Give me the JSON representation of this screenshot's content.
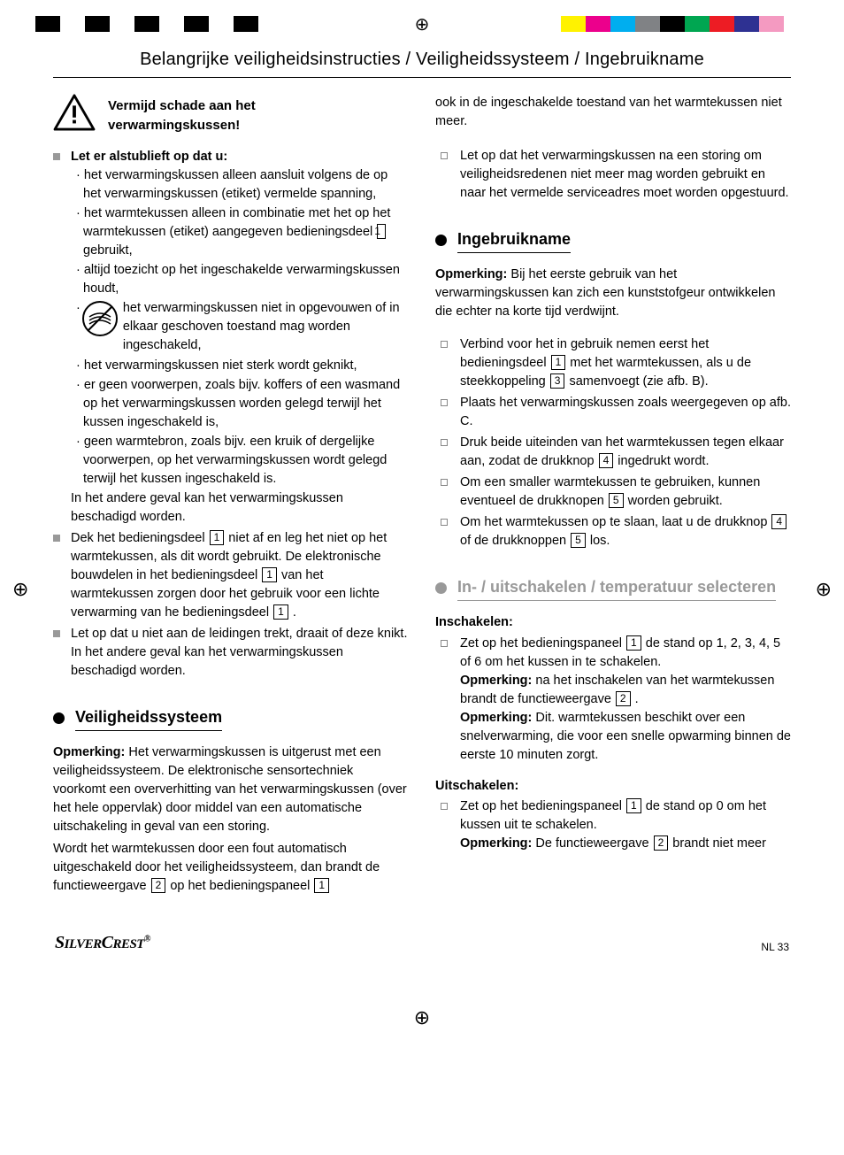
{
  "colorbar": {
    "left": [
      "#000",
      "#fff",
      "#000",
      "#fff",
      "#000",
      "#fff",
      "#000",
      "#fff",
      "#000",
      "#fff"
    ],
    "right": [
      "#fff200",
      "#ec008c",
      "#00aeef",
      "#808285",
      "#000000",
      "#00a651",
      "#ed1c24",
      "#2e3192",
      "#f49ac1",
      "#fff"
    ]
  },
  "header": "Belangrijke veiligheidsinstructies / Veiligheidssysteem / Ingebruikname",
  "warning_title_l1": "Vermijd schade aan het",
  "warning_title_l2": "verwarmingskussen!",
  "letop_head": "Let er alstublieft op dat u:",
  "sub1": "· het verwarmingskussen alleen aansluit volgens de op het verwarmingskussen (etiket) vermelde spanning,",
  "sub2a": "· het warmtekussen alleen in combinatie met het op het warmtekussen (etiket) aangegeven bedieningsdeel ",
  "sub2b": " gebruikt,",
  "sub3": "· altijd toezicht op het ingeschakelde verwarmingskussen houdt,",
  "sub4a": "· ",
  "sub4b": "het verwarmingskussen niet in opgevouwen of in elkaar geschoven toestand mag worden ingeschakeld,",
  "sub5": "· het verwarmingskussen niet sterk wordt geknikt,",
  "sub6": "· er geen voorwerpen, zoals bijv. koffers of een wasmand op het verwarmingskussen worden gelegd terwijl het kussen ingeschakeld is,",
  "sub7": "· geen warmtebron, zoals bijv. een kruik of dergelijke voorwerpen, op het verwarmingskussen wordt gelegd terwijl het kussen ingeschakeld is.",
  "sub_tail": "In het andere geval kan het verwarmingskussen beschadigd worden.",
  "item2a": "Dek het bedieningsdeel ",
  "item2b": " niet af en leg het niet op het warmtekussen, als dit wordt gebruikt. De elektronische bouwdelen in het bedieningsdeel ",
  "item2c": " van het warmtekussen zorgen door het gebruik voor een lichte verwarming van he bedieningsdeel ",
  "item2d": " .",
  "item3": "Let op dat u niet aan de leidingen trekt, draait of deze knikt. In het andere geval kan het verwarmingskussen beschadigd worden.",
  "sec1_title": "Veiligheidssysteem",
  "sec1_p1a": "Opmerking:",
  "sec1_p1b": " Het verwarmingskussen is uitgerust met een veiligheidssysteem. De elektronische sensortechniek voorkomt een oververhitting van het verwarmingskussen (over het hele oppervlak) door middel van een automatische uitschakeling in geval van een storing.",
  "sec1_p2a": "Wordt het warmtekussen door een fout automatisch uitgeschakeld door het veiligheidssysteem, dan brandt de functieweergave ",
  "sec1_p2b": " op het bedieningspaneel ",
  "col2_top": "ook in de ingeschakelde toestand van het warmtekussen niet meer.",
  "col2_b1": "Let op dat het verwarmingskussen na een storing om veiligheidsredenen niet meer mag worden gebruikt en naar het vermelde serviceadres moet worden opgestuurd.",
  "sec2_title": "Ingebruikname",
  "sec2_p1a": "Opmerking:",
  "sec2_p1b": " Bij het eerste gebruik van het verwarmingskussen kan zich een kunststofgeur ontwikkelen die echter na korte tijd verdwijnt.",
  "sec2_li1a": "Verbind voor het in gebruik nemen eerst het bedieningsdeel ",
  "sec2_li1b": " met het warmtekussen, als u de steekkoppeling ",
  "sec2_li1c": " samenvoegt (zie afb. B).",
  "sec2_li2": "Plaats het verwarmingskussen zoals weergegeven op afb. C.",
  "sec2_li3a": "Druk beide uiteinden van het warmtekussen tegen elkaar aan, zodat de drukknop ",
  "sec2_li3b": " ingedrukt wordt.",
  "sec2_li4a": "Om een smaller warmtekussen te gebruiken, kunnen eventueel de drukknopen ",
  "sec2_li4b": " worden gebruikt.",
  "sec2_li5a": "Om het warmtekussen op te slaan, laat u de drukknop ",
  "sec2_li5b": " of de drukknoppen ",
  "sec2_li5c": " los.",
  "sec3_title": "In- / uitschakelen / temperatuur selecteren",
  "insch_head": "Inschakelen:",
  "insch_1a": "Zet op het bedieningspaneel ",
  "insch_1b": " de stand op 1, 2, 3, 4, 5 of 6 om het kussen in te schakelen.",
  "insch_2a": "Opmerking:",
  "insch_2b": " na het inschakelen van het warmtekussen brandt de functieweergave ",
  "insch_2c": " .",
  "insch_3a": "Opmerking:",
  "insch_3b": " Dit. warmtekussen beschikt over een snelverwarming, die voor een snelle opwarming binnen de eerste 10 minuten zorgt.",
  "uitsch_head": "Uitschakelen:",
  "uitsch_1a": "Zet op het bedieningspaneel ",
  "uitsch_1b": " de stand op 0 om het kussen uit te schakelen.",
  "uitsch_2a": "Opmerking:",
  "uitsch_2b": " De functieweergave ",
  "uitsch_2c": " brandt niet meer",
  "brand": "SILVERCREST",
  "pagelabel": "NL   33",
  "nums": {
    "n1": "1",
    "n2": "2",
    "n3": "3",
    "n4": "4",
    "n5": "5"
  }
}
